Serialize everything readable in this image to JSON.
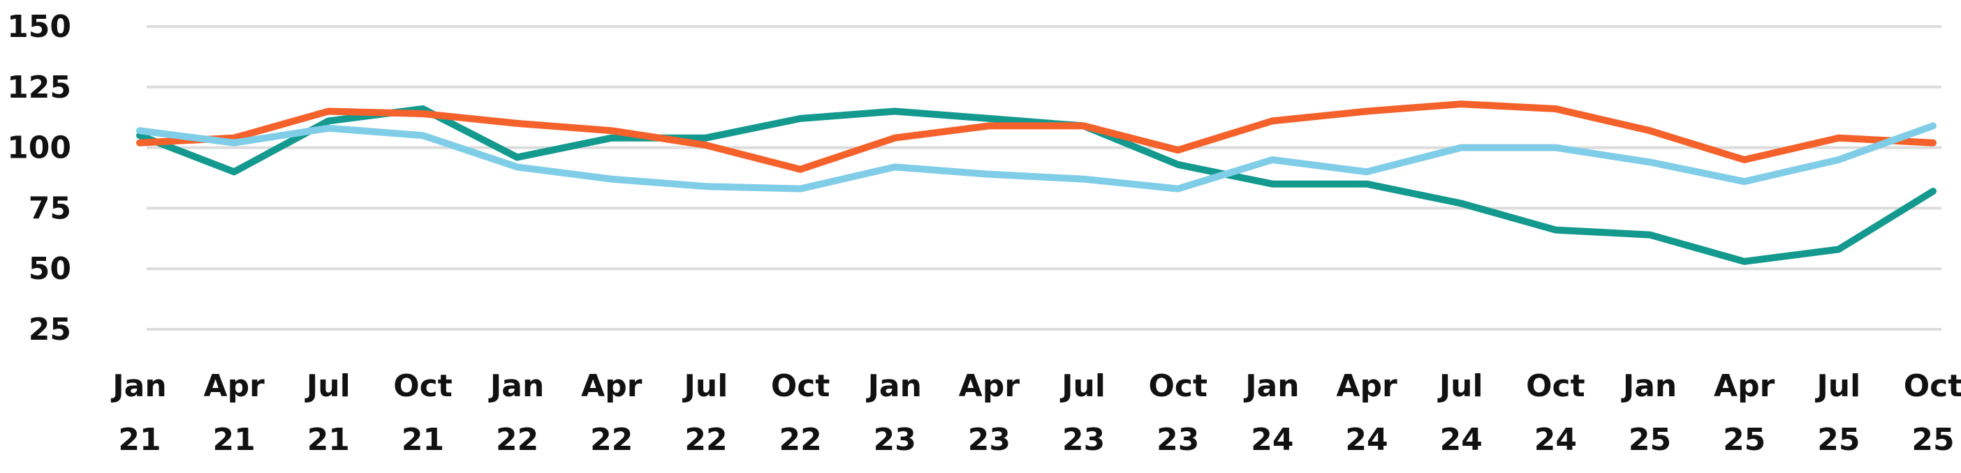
{
  "chart_data": {
    "type": "line",
    "title": "",
    "xlabel": "",
    "ylabel": "",
    "ylim": [
      25,
      150
    ],
    "yticks": [
      25,
      50,
      75,
      100,
      125,
      150
    ],
    "grid": true,
    "legend": "none",
    "categories": [
      [
        "Jan",
        "21"
      ],
      [
        "Apr",
        "21"
      ],
      [
        "Jul",
        "21"
      ],
      [
        "Oct",
        "21"
      ],
      [
        "Jan",
        "22"
      ],
      [
        "Apr",
        "22"
      ],
      [
        "Jul",
        "22"
      ],
      [
        "Oct",
        "22"
      ],
      [
        "Jan",
        "23"
      ],
      [
        "Apr",
        "23"
      ],
      [
        "Jul",
        "23"
      ],
      [
        "Oct",
        "23"
      ],
      [
        "Jan",
        "24"
      ],
      [
        "Apr",
        "24"
      ],
      [
        "Jul",
        "24"
      ],
      [
        "Oct",
        "24"
      ],
      [
        "Jan",
        "25"
      ],
      [
        "Apr",
        "25"
      ],
      [
        "Jul",
        "25"
      ],
      [
        "Oct",
        "25"
      ]
    ],
    "series": [
      {
        "color": "#13998e",
        "values": [
          105,
          90,
          111,
          116,
          96,
          104,
          104,
          112,
          115,
          112,
          109,
          93,
          85,
          85,
          77,
          66,
          64,
          53,
          58,
          82
        ]
      },
      {
        "color": "#f5612a",
        "values": [
          102,
          104,
          115,
          114,
          110,
          107,
          101,
          91,
          104,
          109,
          109,
          99,
          111,
          115,
          118,
          116,
          107,
          95,
          104,
          102
        ]
      },
      {
        "color": "#80cde8",
        "values": [
          107,
          102,
          108,
          105,
          92,
          87,
          84,
          83,
          92,
          89,
          87,
          83,
          95,
          90,
          100,
          100,
          94,
          86,
          95,
          109
        ]
      }
    ]
  }
}
